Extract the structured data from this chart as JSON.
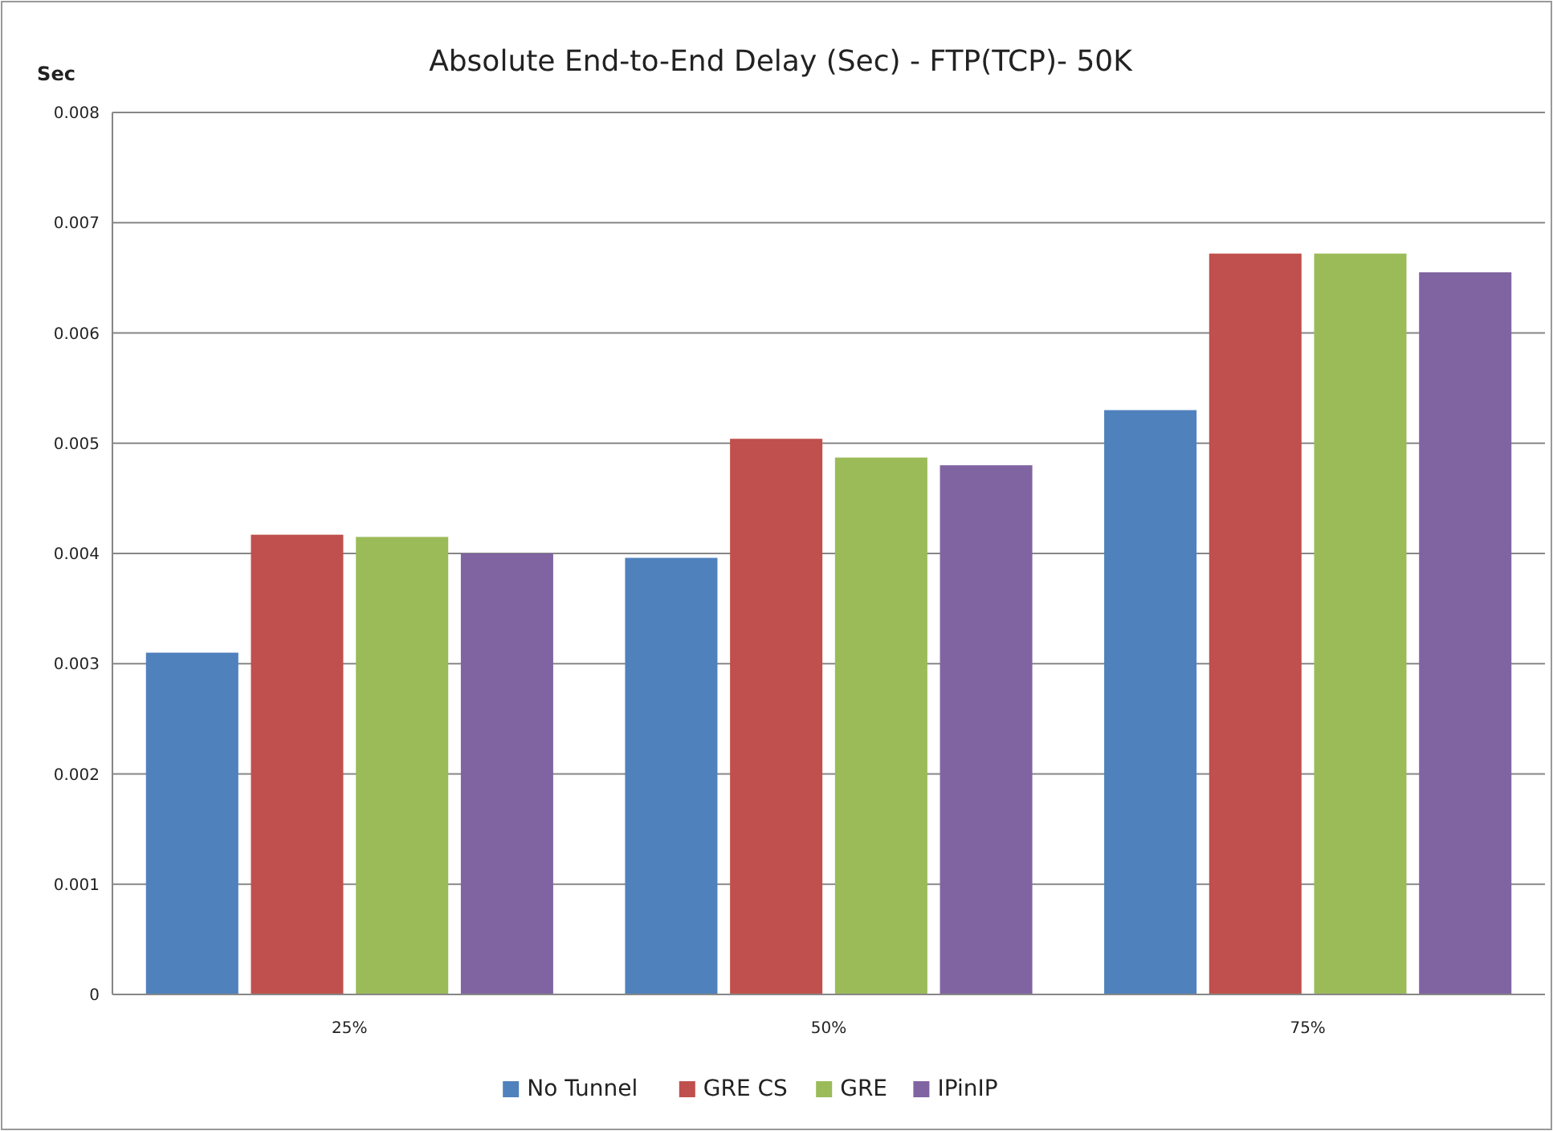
{
  "chart_data": {
    "type": "bar",
    "title": "Absolute End-to-End Delay (Sec) - FTP(TCP)- 50K",
    "ylabel": "Sec",
    "categories": [
      "25%",
      "50%",
      "75%"
    ],
    "series": [
      {
        "name": "No Tunnel",
        "color": "#4f81bd",
        "values": [
          0.0031,
          0.00396,
          0.0053
        ]
      },
      {
        "name": "GRE CS",
        "color": "#c0504d",
        "values": [
          0.00417,
          0.00504,
          0.00672
        ]
      },
      {
        "name": "GRE",
        "color": "#9bbb59",
        "values": [
          0.00415,
          0.00487,
          0.00672
        ]
      },
      {
        "name": "IPinIP",
        "color": "#8064a2",
        "values": [
          0.004,
          0.0048,
          0.00655
        ]
      }
    ],
    "ylim": [
      0,
      0.008
    ],
    "yticks": [
      {
        "value": 0,
        "label": "0"
      },
      {
        "value": 0.001,
        "label": "0.001"
      },
      {
        "value": 0.002,
        "label": "0.002"
      },
      {
        "value": 0.003,
        "label": "0.003"
      },
      {
        "value": 0.004,
        "label": "0.004"
      },
      {
        "value": 0.005,
        "label": "0.005"
      },
      {
        "value": 0.006,
        "label": "0.006"
      },
      {
        "value": 0.007,
        "label": "0.007"
      },
      {
        "value": 0.008,
        "label": "0.008"
      }
    ],
    "grid": "y",
    "legend": "bottom"
  }
}
